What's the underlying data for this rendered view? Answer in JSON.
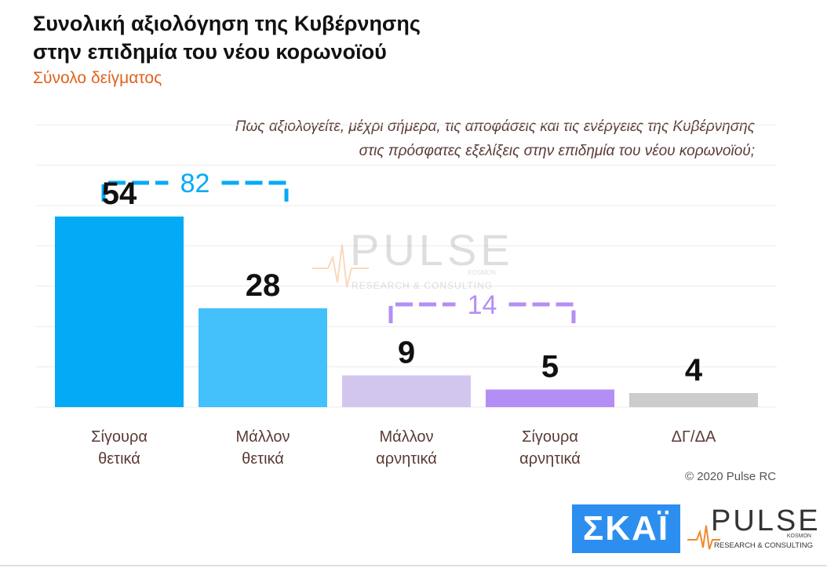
{
  "header": {
    "title_line1": "Συνολική αξιολόγηση της Κυβέρνησης",
    "title_line2": "στην επιδημία του νέου κορωνοϊού",
    "subtitle": "Σύνολο δείγματος",
    "question_line1": "Πως αξιολογείτε, μέχρι σήμερα, τις αποφάσεις και τις ενέργειες της Κυβέρνησης",
    "question_line2": "στις πρόσφατες εξελίξεις στην επιδημία του νέου κορωνοϊού;"
  },
  "chart_data": {
    "type": "bar",
    "categories": [
      [
        "Σίγουρα",
        "θετικά"
      ],
      [
        "Μάλλον",
        "θετικά"
      ],
      [
        "Μάλλον",
        "αρνητικά"
      ],
      [
        "Σίγουρα",
        "αρνητικά"
      ],
      [
        "ΔΓ/ΔΑ"
      ]
    ],
    "values": [
      54,
      28,
      9,
      5,
      4
    ],
    "colors": [
      "#04aaf5",
      "#42c1fb",
      "#d3c6ee",
      "#b48ef5",
      "#cccccc"
    ],
    "ylim": [
      0,
      80
    ],
    "grid": true,
    "brackets": [
      {
        "label": "82",
        "from": 0,
        "to": 1,
        "color": "#04aaf5"
      },
      {
        "label": "14",
        "from": 2,
        "to": 3,
        "color": "#b48ef5"
      }
    ]
  },
  "footer": {
    "copyright": "© 2020 Pulse RC",
    "skai_logo": "ΣΚΑΪ",
    "pulse_logo": "PULSE",
    "pulse_logo_small": "KOSMON",
    "pulse_logo_tagline": "RESEARCH & CONSULTING"
  },
  "watermark": {
    "text": "PULSE",
    "small": "KOSMON",
    "tagline": "RESEARCH & CONSULTING"
  }
}
